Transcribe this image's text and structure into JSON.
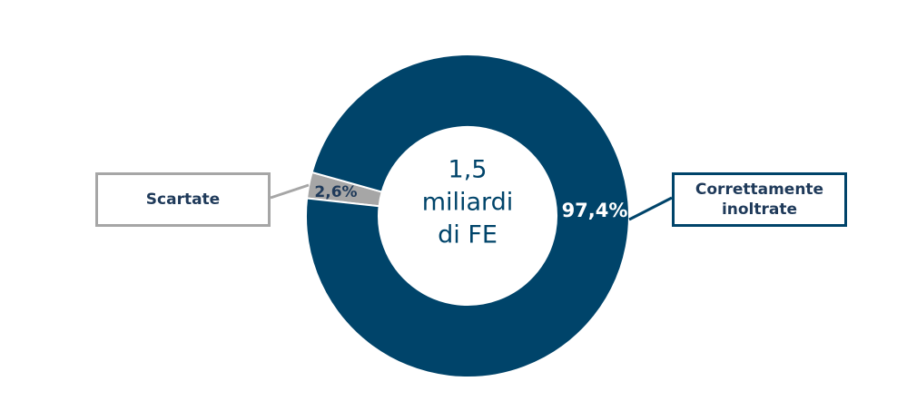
{
  "chart_data": {
    "type": "donut",
    "categories": [
      "Scartate",
      "Correttamente inoltrate"
    ],
    "values": [
      2.6,
      97.4
    ],
    "value_labels": [
      "2,6%",
      "97,4%"
    ],
    "colors": [
      "#a6a6a6",
      "#00446a"
    ],
    "center_text": [
      "1,5",
      "miliardi",
      "di FE"
    ]
  }
}
